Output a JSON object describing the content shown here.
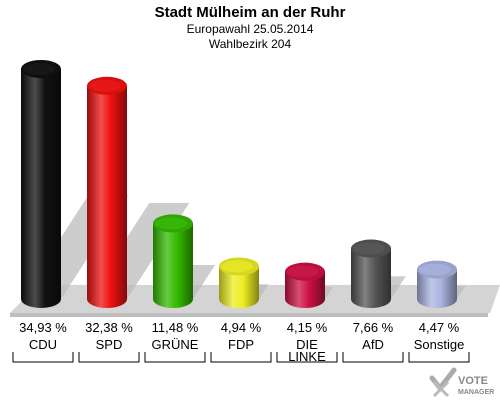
{
  "title": "Stadt Mülheim an der Ruhr",
  "subtitle": "Europawahl 25.05.2014",
  "subtitle2": "Wahlbezirk 204",
  "chart_data": {
    "type": "bar",
    "categories": [
      "CDU",
      "SPD",
      "GRÜNE",
      "FDP",
      "DIE LINKE",
      "AfD",
      "Sonstige"
    ],
    "category_lines": [
      [
        "CDU"
      ],
      [
        "SPD"
      ],
      [
        "GRÜNE"
      ],
      [
        "FDP"
      ],
      [
        "DIE",
        "LINKE"
      ],
      [
        "AfD"
      ],
      [
        "Sonstige"
      ]
    ],
    "values": [
      34.93,
      32.38,
      11.48,
      4.94,
      4.15,
      7.66,
      4.47
    ],
    "value_labels": [
      "34,93 %",
      "32,38 %",
      "11,48 %",
      "4,94 %",
      "4,15 %",
      "7,66 %",
      "4,47 %"
    ],
    "colors": [
      "#111111",
      "#ee1111",
      "#33bb00",
      "#eeee22",
      "#cc1144",
      "#555555",
      "#aab4e0"
    ],
    "ylim": [
      0,
      34.93
    ]
  },
  "logo": {
    "line1": "VOTE",
    "line2": "MANAGER",
    "icon": "checkmark-x-icon"
  }
}
